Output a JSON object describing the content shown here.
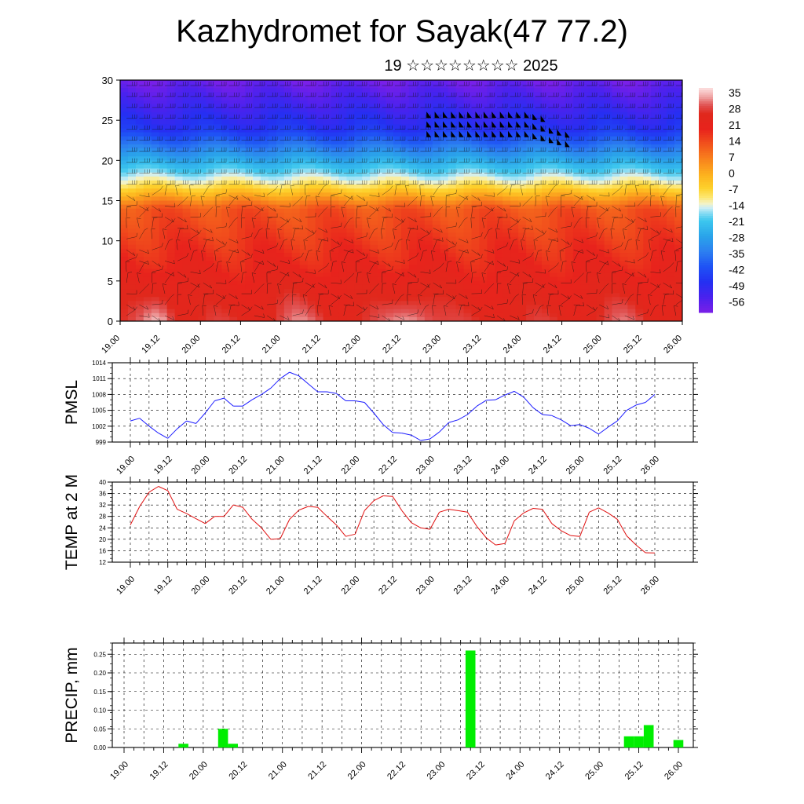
{
  "header": {
    "title": "Kazhydromet for Sayak(47 77.2)",
    "date": "19 ☆☆☆☆☆☆☆☆ 2025"
  },
  "time_ticks": [
    "19.00",
    "19.12",
    "20.00",
    "20.12",
    "21.00",
    "21.12",
    "22.00",
    "22.12",
    "23.00",
    "23.12",
    "24.00",
    "24.12",
    "25.00",
    "25.12",
    "26.00"
  ],
  "chart_data": [
    {
      "type": "heatmap",
      "title": "",
      "xlabel": "",
      "ylabel": "",
      "ylim": [
        0,
        30
      ],
      "yticks": [
        0,
        5,
        10,
        15,
        20,
        25,
        30
      ],
      "colorbar": {
        "labels": [
          35,
          28,
          21,
          14,
          7,
          0,
          -7,
          -14,
          -21,
          -28,
          -35,
          -42,
          -49,
          -56
        ],
        "range": [
          -63,
          40
        ],
        "colors": [
          [
            -63,
            "#7a1fe8"
          ],
          [
            -56,
            "#4a22ee"
          ],
          [
            -49,
            "#2430f2"
          ],
          [
            -42,
            "#1f52f5"
          ],
          [
            -35,
            "#2c80f0"
          ],
          [
            -28,
            "#2aa4ea"
          ],
          [
            -21,
            "#3cc6ee"
          ],
          [
            -18,
            "#7ad8f2"
          ],
          [
            -15,
            "#cdeef5"
          ],
          [
            -13,
            "#f4f2c4"
          ],
          [
            -10,
            "#fde66e"
          ],
          [
            -6,
            "#fdd12c"
          ],
          [
            0,
            "#fdb21e"
          ],
          [
            7,
            "#f8841d"
          ],
          [
            14,
            "#f2541c"
          ],
          [
            21,
            "#e8231c"
          ],
          [
            28,
            "#e0281c"
          ],
          [
            32,
            "#e05252"
          ],
          [
            36,
            "#f0a6a6"
          ],
          [
            40,
            "#fde0e0"
          ]
        ]
      },
      "wind_barbs": "wind barbs overlaid on field"
    },
    {
      "type": "line",
      "ylabel": "PMSL",
      "ylim": [
        999,
        1014
      ],
      "yticks": [
        999,
        1002,
        1005,
        1008,
        1011,
        1014
      ],
      "color": "#1a1aff",
      "x_hours": [
        0,
        3,
        6,
        9,
        12,
        15,
        18,
        21,
        24,
        27,
        30,
        33,
        36,
        39,
        42,
        45,
        48,
        51,
        54,
        57,
        60,
        63,
        66,
        69,
        72,
        75,
        78,
        81,
        84,
        87,
        90,
        93,
        96,
        99,
        102,
        105,
        108,
        111,
        114,
        117,
        120,
        123,
        126,
        129,
        132,
        135,
        138,
        141,
        144,
        147,
        150,
        153,
        156,
        159,
        162,
        165,
        168
      ],
      "values": [
        1003,
        1003.5,
        1002,
        1000.7,
        999.7,
        1001.5,
        1003,
        1002.5,
        1004.5,
        1006.8,
        1007.3,
        1005.8,
        1005.8,
        1007,
        1008,
        1009.2,
        1011,
        1012.2,
        1011.5,
        1010,
        1008.5,
        1008.5,
        1008.2,
        1006.8,
        1006.8,
        1006.5,
        1004.5,
        1002.3,
        1000.8,
        1000.7,
        1000.3,
        999.3,
        999.6,
        1000.9,
        1002.7,
        1003.2,
        1004.2,
        1005.8,
        1006.9,
        1007,
        1007.9,
        1008.6,
        1007.5,
        1005.5,
        1004.2,
        1004,
        1003.2,
        1002.1,
        1002.3,
        1001.6,
        1000.5,
        1001.8,
        1003,
        1005,
        1006,
        1006.5,
        1008
      ]
    },
    {
      "type": "line",
      "ylabel": "TEMP at 2 M",
      "ylim": [
        12,
        40
      ],
      "yticks": [
        12,
        16,
        20,
        24,
        28,
        32,
        36,
        40
      ],
      "color": "#e01010",
      "x_hours": [
        0,
        3,
        6,
        9,
        12,
        15,
        18,
        21,
        24,
        27,
        30,
        33,
        36,
        39,
        42,
        45,
        48,
        51,
        54,
        57,
        60,
        63,
        66,
        69,
        72,
        75,
        78,
        81,
        84,
        87,
        90,
        93,
        96,
        99,
        102,
        105,
        108,
        111,
        114,
        117,
        120,
        123,
        126,
        129,
        132,
        135,
        138,
        141,
        144,
        147,
        150,
        153,
        156,
        159,
        162,
        165,
        168
      ],
      "values": [
        25,
        31.5,
        36.5,
        38.5,
        37,
        30.5,
        29,
        27.2,
        25.5,
        28,
        28,
        32,
        31.2,
        27,
        24,
        20,
        20.2,
        27,
        30.2,
        31.5,
        31.2,
        28,
        25,
        21,
        21.8,
        30,
        33.5,
        35.2,
        35,
        30,
        25.8,
        24,
        23.5,
        29.5,
        30.5,
        30,
        29.5,
        24.5,
        20.5,
        18,
        18.5,
        26.5,
        29.2,
        30.8,
        30.5,
        25.5,
        23,
        21.3,
        21,
        29.5,
        31,
        29.2,
        27,
        21.2,
        18,
        15.3,
        15.2
      ]
    },
    {
      "type": "bar",
      "ylabel": "PRECIP, mm",
      "ylim": [
        0,
        0.28
      ],
      "yticks": [
        "0.00",
        "0.05",
        "0.10",
        "0.15",
        "0.20",
        "0.25"
      ],
      "color": "#00ee00",
      "bin_hours": 3,
      "bars": [
        {
          "x_hours": 18,
          "value": 0.01
        },
        {
          "x_hours": 30,
          "value": 0.05
        },
        {
          "x_hours": 33,
          "value": 0.01
        },
        {
          "x_hours": 105,
          "value": 0.26
        },
        {
          "x_hours": 153,
          "value": 0.03
        },
        {
          "x_hours": 156,
          "value": 0.03
        },
        {
          "x_hours": 159,
          "value": 0.06
        },
        {
          "x_hours": 168,
          "value": 0.02
        }
      ]
    }
  ]
}
